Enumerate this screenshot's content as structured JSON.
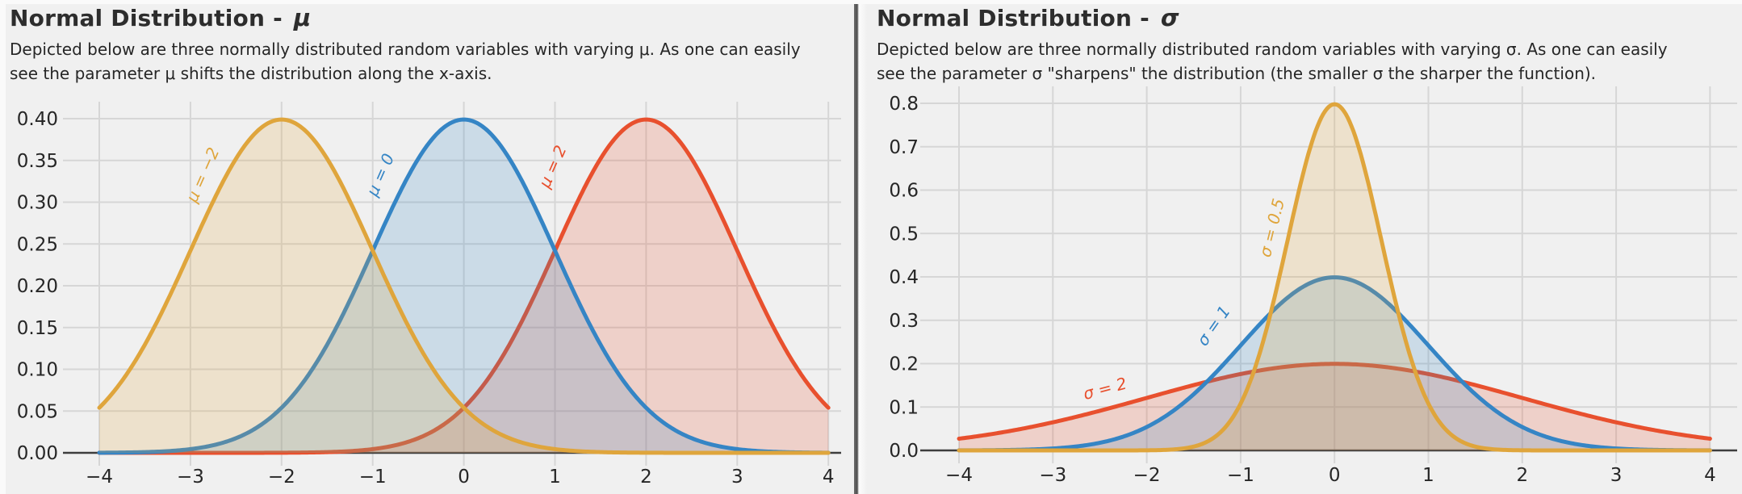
{
  "colors": {
    "background": "#f0f0f0",
    "grid": "#d6d6d6",
    "axis_line": "#3d3d3d",
    "tick_text": "#262626",
    "gold": "#DFA53C",
    "blue": "#3585C5",
    "red": "#E8502E"
  },
  "chart_data": [
    {
      "type": "line",
      "title_prefix": "Normal Distribution -",
      "title_symbol": "μ",
      "subtitle": "Depicted below are three normally distributed random variables with varying μ. As one can easily see the parameter μ shifts the distribution along the x-axis.",
      "xlabel": "",
      "ylabel": "",
      "xlim": [
        -4,
        4
      ],
      "ylim": [
        0,
        0.42
      ],
      "grid": true,
      "legend": "inline-curve-labels",
      "x_tick_values": [
        -4,
        -3,
        -2,
        -1,
        0,
        1,
        2,
        3,
        4
      ],
      "x_tick_labels": [
        "−4",
        "−3",
        "−2",
        "−1",
        "0",
        "1",
        "2",
        "3",
        "4"
      ],
      "y_tick_values": [
        0.0,
        0.05,
        0.1,
        0.15,
        0.2,
        0.25,
        0.3,
        0.35,
        0.4
      ],
      "y_tick_labels": [
        "0.00",
        "0.05",
        "0.10",
        "0.15",
        "0.20",
        "0.25",
        "0.30",
        "0.35",
        "0.40"
      ],
      "fill_opacity": 0.2,
      "series": [
        {
          "label": "μ = −2",
          "mu": -2,
          "sigma": 1,
          "peak_y": 0.4,
          "color": "#DFA53C",
          "label_x": -2.81,
          "label_y": 0.33,
          "label_rot": -66
        },
        {
          "label": "μ = 0",
          "mu": 0,
          "sigma": 1,
          "peak_y": 0.4,
          "color": "#3585C5",
          "label_x": -0.86,
          "label_y": 0.33,
          "label_rot": -66
        },
        {
          "label": "μ = 2",
          "mu": 2,
          "sigma": 1,
          "peak_y": 0.4,
          "color": "#E8502E",
          "label_x": 1.03,
          "label_y": 0.34,
          "label_rot": -66
        }
      ]
    },
    {
      "type": "line",
      "title_prefix": "Normal Distribution -",
      "title_symbol": "σ",
      "subtitle": "Depicted below are three normally distributed random variables with varying σ. As one can easily see the parameter σ \"sharpens\" the distribution (the smaller σ the sharper the function).",
      "xlabel": "",
      "ylabel": "",
      "xlim": [
        -4,
        4
      ],
      "ylim": [
        0,
        0.84
      ],
      "grid": true,
      "legend": "inline-curve-labels",
      "x_tick_values": [
        -4,
        -3,
        -2,
        -1,
        0,
        1,
        2,
        3,
        4
      ],
      "x_tick_labels": [
        "−4",
        "−3",
        "−2",
        "−1",
        "0",
        "1",
        "2",
        "3",
        "4"
      ],
      "y_tick_values": [
        0.0,
        0.1,
        0.2,
        0.3,
        0.4,
        0.5,
        0.6,
        0.7,
        0.8
      ],
      "y_tick_labels": [
        "0.0",
        "0.1",
        "0.2",
        "0.3",
        "0.4",
        "0.5",
        "0.6",
        "0.7",
        "0.8"
      ],
      "fill_opacity": 0.2,
      "series": [
        {
          "label": "σ = 0.5",
          "mu": 0,
          "sigma": 0.5,
          "peak_y": 0.8,
          "color": "#DFA53C",
          "label_x": -0.61,
          "label_y": 0.51,
          "label_rot": -76
        },
        {
          "label": "σ = 1",
          "mu": 0,
          "sigma": 1,
          "peak_y": 0.4,
          "color": "#3585C5",
          "label_x": -1.24,
          "label_y": 0.28,
          "label_rot": -55
        },
        {
          "label": "σ = 2",
          "mu": 0,
          "sigma": 2,
          "peak_y": 0.2,
          "color": "#E8502E",
          "label_x": -2.43,
          "label_y": 0.13,
          "label_rot": -15
        }
      ]
    }
  ]
}
